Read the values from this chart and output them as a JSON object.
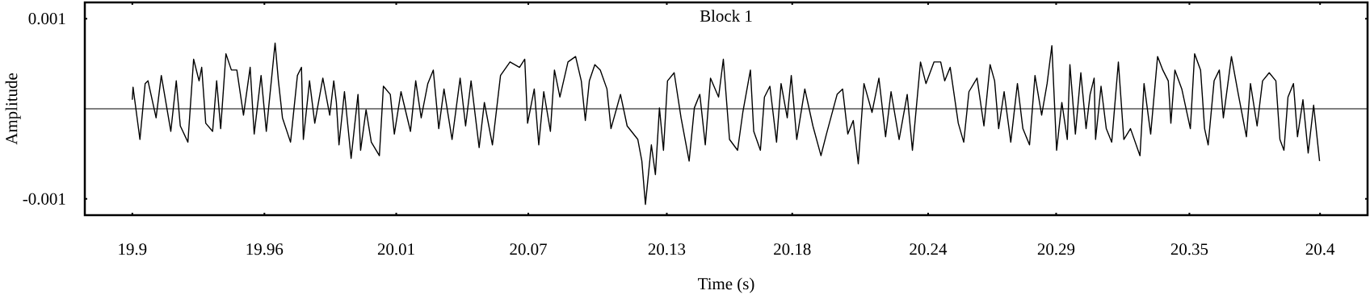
{
  "chart_data": {
    "type": "line",
    "title": "Block 1",
    "xlabel": "Time (s)",
    "ylabel": "Amplitude",
    "xlim": [
      19.88,
      20.42
    ],
    "ylim": [
      -0.00118,
      0.00118
    ],
    "xticks": [
      19.9,
      {
        "value": 19.9556,
        "label": "19.96"
      },
      {
        "value": 20.0111,
        "label": "20.01"
      },
      {
        "value": 20.0667,
        "label": "20.07"
      },
      {
        "value": 20.125,
        "label": "20.13"
      },
      {
        "value": 20.1778,
        "label": "20.18"
      },
      {
        "value": 20.235,
        "label": "20.24"
      },
      {
        "value": 20.2889,
        "label": "20.29"
      },
      {
        "value": 20.345,
        "label": "20.35"
      },
      20.4
    ],
    "yticks": [
      -0.001,
      0.001
    ],
    "ref_lines": [
      {
        "axis": "y",
        "value": 0,
        "color": "#000000"
      }
    ],
    "x": [
      19.9,
      19.9003,
      19.9032,
      19.9054,
      19.9066,
      19.91,
      19.9122,
      19.9162,
      19.9185,
      19.9202,
      19.9234,
      19.9258,
      19.9281,
      19.9292,
      19.9309,
      19.9338,
      19.9355,
      19.9372,
      19.9394,
      19.9417,
      19.944,
      19.9468,
      19.9496,
      19.9513,
      19.9542,
      19.9564,
      19.9601,
      19.9615,
      19.9632,
      19.9666,
      19.9695,
      19.9712,
      19.972,
      19.9746,
      19.9768,
      19.9802,
      19.9831,
      19.9848,
      19.9859,
      19.987,
      19.9893,
      19.9921,
      19.995,
      19.9961,
      19.9984,
      20.0006,
      20.004,
      20.0057,
      20.0086,
      20.0103,
      20.0131,
      20.0171,
      20.0193,
      20.0216,
      20.0244,
      20.0267,
      20.029,
      20.0312,
      20.0346,
      20.038,
      20.0403,
      20.0426,
      20.046,
      20.0482,
      20.0516,
      20.055,
      20.059,
      20.063,
      20.0652,
      20.0664,
      20.0692,
      20.0711,
      20.0732,
      20.076,
      20.0777,
      20.08,
      20.0834,
      20.0866,
      20.089,
      20.0907,
      20.0924,
      20.0947,
      20.097,
      20.0998,
      20.1015,
      20.1055,
      20.1083,
      20.1128,
      20.1145,
      20.116,
      20.1185,
      20.1202,
      20.1219,
      20.1236,
      20.1253,
      20.1281,
      20.131,
      20.1344,
      20.1366,
      20.1389,
      20.1412,
      20.1434,
      20.1468,
      20.1488,
      20.1514,
      20.1548,
      20.157,
      20.1602,
      20.1616,
      20.1644,
      20.1661,
      20.1684,
      20.1712,
      20.1731,
      20.1757,
      20.1774,
      20.1797,
      20.1831,
      20.1865,
      20.1899,
      20.1922,
      20.1967,
      20.199,
      20.2012,
      20.2035,
      20.2056,
      20.208,
      20.2114,
      20.2143,
      20.2171,
      20.2194,
      20.2228,
      20.2262,
      20.2284,
      20.2318,
      20.2341,
      20.2375,
      20.2403,
      20.242,
      20.2443,
      20.2477,
      20.25,
      20.2522,
      20.2556,
      20.2585,
      20.2611,
      20.263,
      20.2647,
      20.267,
      20.2698,
      20.2726,
      20.2749,
      20.2777,
      20.28,
      20.2828,
      20.2851,
      20.2871,
      20.2891,
      20.2913,
      20.2936,
      20.2947,
      20.297,
      20.2993,
      20.3015,
      20.3032,
      20.3049,
      20.3055,
      20.3078,
      20.31,
      20.3123,
      20.3151,
      20.3174,
      20.3202,
      20.3242,
      20.3259,
      20.3287,
      20.3316,
      20.3338,
      20.3361,
      20.3372,
      20.3389,
      20.3418,
      20.3454,
      20.3472,
      20.3497,
      20.3514,
      20.3529,
      20.3554,
      20.3576,
      20.3593,
      20.3627,
      20.3656,
      20.369,
      20.3707,
      20.3735,
      20.3758,
      20.3786,
      20.3814,
      20.3831,
      20.3848,
      20.3865,
      20.3888,
      20.3905,
      20.3928,
      20.395,
      20.3973,
      20.3998
    ],
    "series": [
      {
        "color": "#000000",
        "values": [
          0.0001,
          0.00024,
          -0.00034,
          0.00028,
          0.00031,
          -0.0001,
          0.00037,
          -0.00025,
          0.00031,
          -0.00019,
          -0.00037,
          0.00055,
          0.00031,
          0.00046,
          -0.00016,
          -0.00025,
          0.00031,
          -0.00022,
          0.00061,
          0.00043,
          0.00043,
          -7e-05,
          0.00046,
          -0.00028,
          0.00037,
          -0.00025,
          0.00073,
          0.00031,
          -0.0001,
          -0.00037,
          0.00037,
          0.00046,
          -0.00034,
          0.00031,
          -0.00016,
          0.00034,
          -7e-05,
          0.00031,
          7e-05,
          -0.0004,
          0.00019,
          -0.00055,
          0.00016,
          -0.00046,
          -1e-05,
          -0.00037,
          -0.00052,
          0.00025,
          0.00016,
          -0.00028,
          0.00019,
          -0.00025,
          0.00031,
          -0.0001,
          0.00028,
          0.00043,
          -0.00022,
          0.00022,
          -0.00034,
          0.00034,
          -0.00019,
          0.00031,
          -0.00043,
          7e-05,
          -0.0004,
          0.00037,
          0.00052,
          0.00046,
          0.00055,
          -0.00016,
          0.00022,
          -0.0004,
          0.00019,
          -0.00025,
          0.00043,
          0.00013,
          0.00052,
          0.00058,
          0.00031,
          -0.00013,
          0.00031,
          0.00049,
          0.00043,
          0.00022,
          -0.00022,
          0.00016,
          -0.00019,
          -0.00034,
          -0.00058,
          -0.00106,
          -0.0004,
          -0.00073,
          1e-05,
          -0.00046,
          0.00031,
          0.0004,
          -0.0001,
          -0.00058,
          1e-05,
          0.00016,
          -0.0004,
          0.00034,
          0.00013,
          0.00055,
          -0.00034,
          -0.00046,
          -4e-05,
          0.00043,
          -0.00025,
          -0.00046,
          0.00013,
          0.00025,
          -0.00037,
          0.00028,
          -0.0001,
          0.00037,
          -0.00034,
          0.00022,
          -0.00019,
          -0.00052,
          -0.00028,
          0.00016,
          0.00022,
          -0.00028,
          -0.00013,
          -0.00061,
          0.00028,
          -4e-05,
          0.00034,
          -0.00031,
          0.00019,
          -0.00034,
          0.00016,
          -0.00046,
          0.00052,
          0.00028,
          0.00052,
          0.00052,
          0.00031,
          0.00046,
          -0.00016,
          -0.00037,
          0.00019,
          0.00034,
          -0.00019,
          0.00049,
          0.00031,
          -0.00022,
          0.00019,
          -0.00037,
          0.00028,
          -0.00022,
          -0.0004,
          0.00037,
          -7e-05,
          0.00028,
          0.0007,
          -0.00046,
          7e-05,
          -0.00034,
          0.00049,
          -0.00028,
          0.0004,
          -0.00022,
          0.00016,
          0.00034,
          -0.00034,
          0.00025,
          -0.00022,
          -0.00037,
          0.00052,
          -0.00034,
          -0.00022,
          -0.00052,
          0.00028,
          -0.00028,
          0.00058,
          0.00043,
          0.00031,
          -0.00016,
          0.00043,
          0.00022,
          -0.00022,
          0.00061,
          0.00043,
          -0.00022,
          -0.0004,
          0.00031,
          0.00043,
          -0.0001,
          0.00058,
          0.00016,
          -0.00031,
          0.00028,
          -0.00019,
          0.00031,
          0.0004,
          0.00031,
          -0.00034,
          -0.00046,
          0.00013,
          0.00028,
          -0.00031,
          0.0001,
          -0.00049,
          4e-05,
          -0.00058
        ]
      }
    ]
  }
}
